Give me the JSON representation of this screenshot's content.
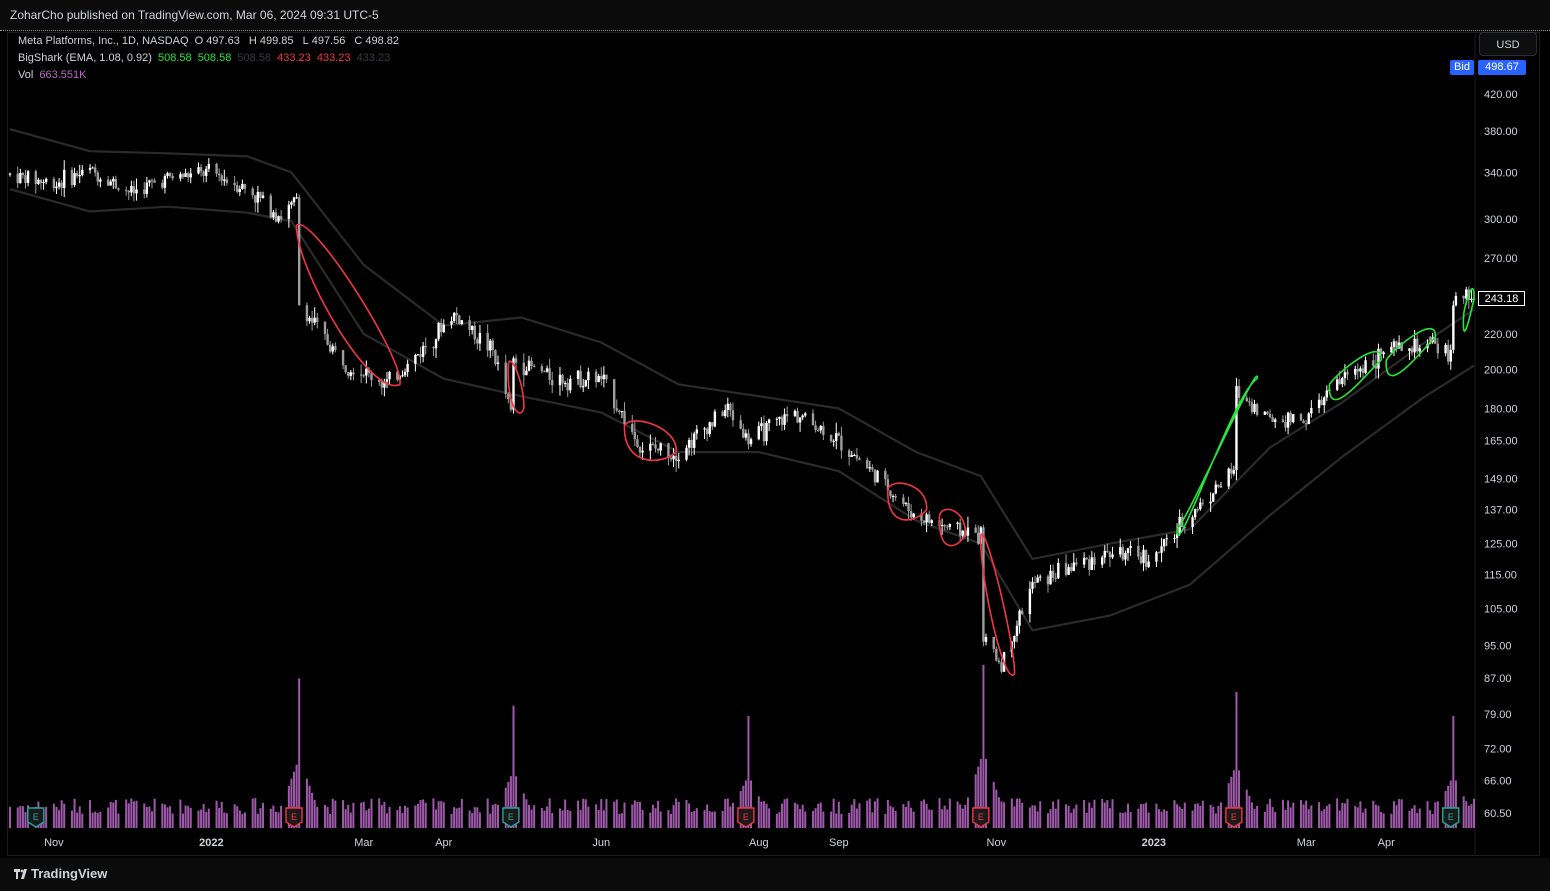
{
  "header": {
    "published_text": "ZoharCho published on TradingView.com, Mar 06, 2024 09:31 UTC-5"
  },
  "legend": {
    "symbol": "Meta Platforms, Inc., 1D, NASDAQ",
    "o_label": "O",
    "o_value": "497.63",
    "h_label": "H",
    "h_value": "499.85",
    "l_label": "L",
    "l_value": "497.56",
    "c_label": "C",
    "c_value": "498.82",
    "indicator": "BigShark (EMA, 1.08, 0.92)",
    "ind_values": [
      "508.58",
      "508.58",
      "508.58",
      "433.23",
      "433.23",
      "433.23"
    ],
    "vol_label": "Vol",
    "vol_value": "663.551K"
  },
  "price_scale": {
    "currency_button": "USD",
    "bid_label": "Bid",
    "bid_value": "498.67",
    "last_value": "243.18"
  },
  "footer": {
    "brand": "TradingView"
  },
  "colors": {
    "up": "#ffffff",
    "down": "#9e9e9e",
    "band": "#2b2b2b",
    "bear_signal": "#f23645",
    "bull_signal": "#26e63a",
    "volume": "#ba68c8",
    "earnings_red": "#f23645",
    "earnings_teal": "#26a69a"
  },
  "chart_data": {
    "type": "candlestick",
    "title": "Meta Platforms, Inc., 1D, NASDAQ",
    "y_scale": "log",
    "y_ticks": [
      420,
      380,
      340,
      300,
      270,
      240,
      220,
      200,
      180,
      165,
      149,
      137,
      125,
      115,
      105,
      95,
      87,
      79,
      72,
      66,
      60.5
    ],
    "y_tick_labels": [
      "420.00",
      "380.00",
      "340.00",
      "300.00",
      "270.00",
      "220.00",
      "200.00",
      "180.00",
      "165.00",
      "149.00",
      "137.00",
      "125.00",
      "115.00",
      "105.00",
      "95.00",
      "87.00",
      "79.00",
      "72.00",
      "66.00",
      "60.50"
    ],
    "x_axis_labels": [
      "Nov",
      "2022",
      "Mar",
      "Apr",
      "Jun",
      "Aug",
      "Sep",
      "Nov",
      "2023",
      "Mar",
      "Apr"
    ],
    "x_range": [
      "2021-10-15",
      "2023-05-05"
    ],
    "price_path": [
      [
        "2021-10-15",
        338
      ],
      [
        "2021-11-01",
        330
      ],
      [
        "2021-11-15",
        342
      ],
      [
        "2021-12-01",
        322
      ],
      [
        "2021-12-15",
        335
      ],
      [
        "2022-01-01",
        340
      ],
      [
        "2022-01-15",
        325
      ],
      [
        "2022-01-28",
        302
      ],
      [
        "2022-02-03",
        315
      ],
      [
        "2022-02-04",
        238
      ],
      [
        "2022-02-20",
        205
      ],
      [
        "2022-03-10",
        192
      ],
      [
        "2022-03-20",
        205
      ],
      [
        "2022-04-05",
        232
      ],
      [
        "2022-04-20",
        210
      ],
      [
        "2022-04-27",
        178
      ],
      [
        "2022-04-28",
        205
      ],
      [
        "2022-05-15",
        195
      ],
      [
        "2022-06-01",
        195
      ],
      [
        "2022-06-16",
        162
      ],
      [
        "2022-07-01",
        160
      ],
      [
        "2022-07-20",
        180
      ],
      [
        "2022-07-28",
        165
      ],
      [
        "2022-08-15",
        178
      ],
      [
        "2022-09-01",
        165
      ],
      [
        "2022-09-30",
        135
      ],
      [
        "2022-10-15",
        130
      ],
      [
        "2022-10-26",
        128
      ],
      [
        "2022-10-27",
        97
      ],
      [
        "2022-11-03",
        90
      ],
      [
        "2022-11-15",
        112
      ],
      [
        "2022-12-01",
        118
      ],
      [
        "2022-12-15",
        122
      ],
      [
        "2023-01-01",
        120
      ],
      [
        "2023-01-15",
        135
      ],
      [
        "2023-02-01",
        152
      ],
      [
        "2023-02-02",
        188
      ],
      [
        "2023-02-15",
        175
      ],
      [
        "2023-03-01",
        175
      ],
      [
        "2023-03-15",
        195
      ],
      [
        "2023-04-01",
        210
      ],
      [
        "2023-04-20",
        213
      ],
      [
        "2023-04-26",
        208
      ],
      [
        "2023-04-27",
        240
      ],
      [
        "2023-05-03",
        243.18
      ]
    ],
    "upper_band": [
      [
        "2021-10-15",
        382
      ],
      [
        "2021-11-15",
        360
      ],
      [
        "2021-12-15",
        358
      ],
      [
        "2022-01-15",
        355
      ],
      [
        "2022-02-01",
        340
      ],
      [
        "2022-03-01",
        265
      ],
      [
        "2022-04-01",
        225
      ],
      [
        "2022-05-01",
        230
      ],
      [
        "2022-06-01",
        215
      ],
      [
        "2022-07-01",
        192
      ],
      [
        "2022-08-01",
        186
      ],
      [
        "2022-09-01",
        180
      ],
      [
        "2022-10-01",
        160
      ],
      [
        "2022-10-26",
        150
      ],
      [
        "2022-11-15",
        120
      ],
      [
        "2022-12-15",
        125
      ],
      [
        "2023-01-15",
        130
      ],
      [
        "2023-02-15",
        162
      ],
      [
        "2023-03-15",
        183
      ],
      [
        "2023-04-15",
        214
      ],
      [
        "2023-05-05",
        235
      ]
    ],
    "lower_band": [
      [
        "2021-10-15",
        325
      ],
      [
        "2021-11-15",
        306
      ],
      [
        "2021-12-15",
        310
      ],
      [
        "2022-01-15",
        305
      ],
      [
        "2022-02-01",
        298
      ],
      [
        "2022-03-01",
        220
      ],
      [
        "2022-04-01",
        195
      ],
      [
        "2022-05-01",
        186
      ],
      [
        "2022-06-01",
        178
      ],
      [
        "2022-07-01",
        160
      ],
      [
        "2022-08-01",
        160
      ],
      [
        "2022-09-01",
        152
      ],
      [
        "2022-10-01",
        133
      ],
      [
        "2022-10-26",
        125
      ],
      [
        "2022-11-15",
        99
      ],
      [
        "2022-12-15",
        103
      ],
      [
        "2023-01-15",
        112
      ],
      [
        "2023-02-15",
        135
      ],
      [
        "2023-03-15",
        158
      ],
      [
        "2023-04-15",
        185
      ],
      [
        "2023-05-05",
        202
      ]
    ],
    "bear_signals": [
      [
        "2022-02-03",
        "2022-03-15",
        295,
        192
      ],
      [
        "2022-04-26",
        "2022-05-02",
        203,
        180
      ],
      [
        "2022-06-10",
        "2022-06-30",
        172,
        160
      ],
      [
        "2022-09-20",
        "2022-10-05",
        145,
        137
      ],
      [
        "2022-10-10",
        "2022-10-20",
        135,
        128
      ],
      [
        "2022-10-26",
        "2022-11-08",
        128,
        88
      ]
    ],
    "bull_signals": [
      [
        "2023-01-10",
        "2023-02-10",
        130,
        195
      ],
      [
        "2023-03-10",
        "2023-03-30",
        192,
        205
      ],
      [
        "2023-04-01",
        "2023-04-20",
        205,
        218
      ],
      [
        "2023-05-01",
        "2023-05-05",
        232,
        242
      ]
    ],
    "volume_spikes": [
      [
        "2022-02-04",
        88
      ],
      [
        "2022-04-28",
        72
      ],
      [
        "2022-07-28",
        66
      ],
      [
        "2022-10-27",
        96
      ],
      [
        "2023-02-02",
        80
      ],
      [
        "2023-04-27",
        66
      ]
    ],
    "earnings_markers": [
      [
        "2021-10-25",
        "E",
        "teal"
      ],
      [
        "2022-02-02",
        "E",
        "red"
      ],
      [
        "2022-04-27",
        "E",
        "teal"
      ],
      [
        "2022-07-27",
        "E",
        "red"
      ],
      [
        "2022-10-26",
        "E",
        "red"
      ],
      [
        "2023-02-01",
        "E",
        "red"
      ],
      [
        "2023-04-26",
        "E",
        "teal"
      ]
    ],
    "last_price": 243.18,
    "grid": false,
    "legend_position": "top-left"
  }
}
